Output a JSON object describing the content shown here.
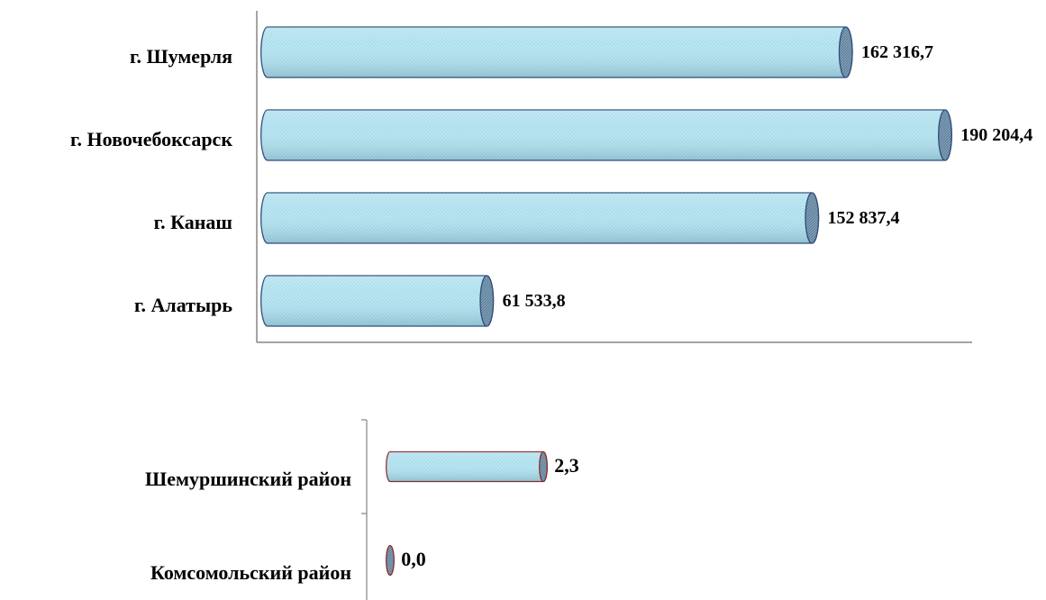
{
  "chart_data": [
    {
      "type": "bar",
      "orientation": "horizontal",
      "categories": [
        "г. Шумерля",
        "г. Новочебоксарск",
        "г. Канаш",
        "г. Алатырь"
      ],
      "values": [
        162316.7,
        190204.4,
        152837.4,
        61533.8
      ],
      "value_labels": [
        "162 316,7",
        "190 204,4",
        "152 837,4",
        "61 533,8"
      ],
      "xlim": [
        0,
        190204.4
      ],
      "grid": false,
      "bar_style": "cylinder",
      "colors": {
        "fill": "#b9e6f2",
        "edge": "#2f4d7a",
        "cap": "#7f9fb8"
      }
    },
    {
      "type": "bar",
      "orientation": "horizontal",
      "categories": [
        "Шемуршинский район",
        "Комсомольский район"
      ],
      "values": [
        2.3,
        0.0
      ],
      "value_labels": [
        "2,3",
        "0,0"
      ],
      "xlim": [
        0,
        2.3
      ],
      "grid": false,
      "bar_style": "cylinder",
      "colors": {
        "fill": "#b9e6f2",
        "edge": "#8b2a2a",
        "cap": "#7f9fb8"
      }
    }
  ]
}
